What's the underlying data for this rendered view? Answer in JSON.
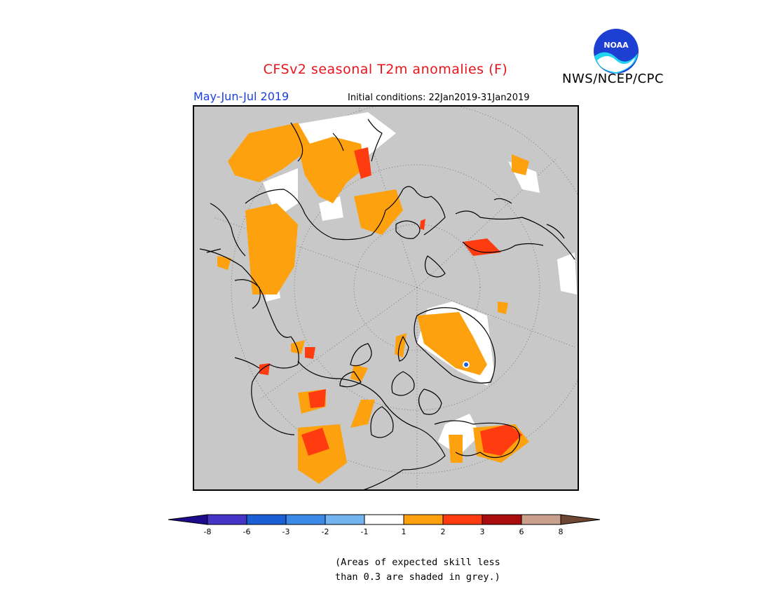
{
  "header": {
    "title": "CFSv2 seasonal T2m anomalies (F)",
    "agency": "NWS/NCEP/CPC",
    "period": "May-Jun-Jul 2019",
    "initial_conditions": "Initial conditions: 22Jan2019-31Jan2019",
    "logo_text": "NOAA"
  },
  "colors": {
    "title": "#e8131b",
    "period": "#1a3fe6",
    "map_background": "#c8c8c8",
    "coastline": "#000000",
    "gridline": "#7a7a7a"
  },
  "colorbar": {
    "bins": [
      {
        "color": "#1e0a8c"
      },
      {
        "color": "#4536c8"
      },
      {
        "color": "#1a5fd4"
      },
      {
        "color": "#3c8ae8"
      },
      {
        "color": "#72b4f0"
      },
      {
        "color": "#ffffff"
      },
      {
        "color": "#fea10f"
      },
      {
        "color": "#fe3c10"
      },
      {
        "color": "#a80c0c"
      },
      {
        "color": "#c8a08c"
      },
      {
        "color": "#6e4632"
      }
    ],
    "tick_labels": [
      "-8",
      "-6",
      "-3",
      "-2",
      "-1",
      "1",
      "2",
      "3",
      "6",
      "8"
    ]
  },
  "note": {
    "line1": "(Areas of expected skill less",
    "line2": "than 0.3 are shaded in grey.)"
  }
}
